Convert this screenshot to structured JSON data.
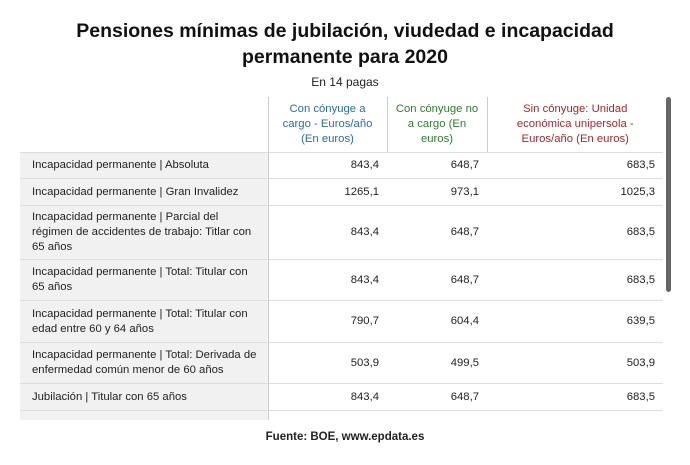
{
  "header": {
    "title": "Pensiones mínimas de jubilación, viudedad e incapacidad permanente para 2020",
    "subtitle": "En 14 pagas"
  },
  "table": {
    "columns": [
      "Con cónyuge a cargo - Euros/año (En euros)",
      "Con cónyuge no a cargo (En euros)",
      "Sin cónyuge: Unidad económica unipersola - Euros/año (En euros)"
    ],
    "rows": [
      [
        "Incapacidad permanente | Absoluta",
        "843,4",
        "648,7",
        "683,5"
      ],
      [
        "Incapacidad permanente | Gran Invalidez",
        "1265,1",
        "973,1",
        "1025,3"
      ],
      [
        "Incapacidad permanente | Parcial del régimen de accidentes de trabajo: Titlar con 65 años",
        "843,4",
        "648,7",
        "683,5"
      ],
      [
        "Incapacidad permanente | Total: Titular con 65 años",
        "843,4",
        "648,7",
        "683,5"
      ],
      [
        "Incapacidad permanente | Total: Titular con edad entre 60 y 64 años",
        "790,7",
        "604,4",
        "639,5"
      ],
      [
        "Incapacidad permanente | Total: Derivada de enfermedad común menor de 60 años",
        "503,9",
        "499,5",
        "503,9"
      ],
      [
        "Jubilación | Titular con 65 años",
        "843,4",
        "648,7",
        "683,5"
      ]
    ]
  },
  "footer": {
    "source": "Fuente: BOE, www.epdata.es"
  }
}
